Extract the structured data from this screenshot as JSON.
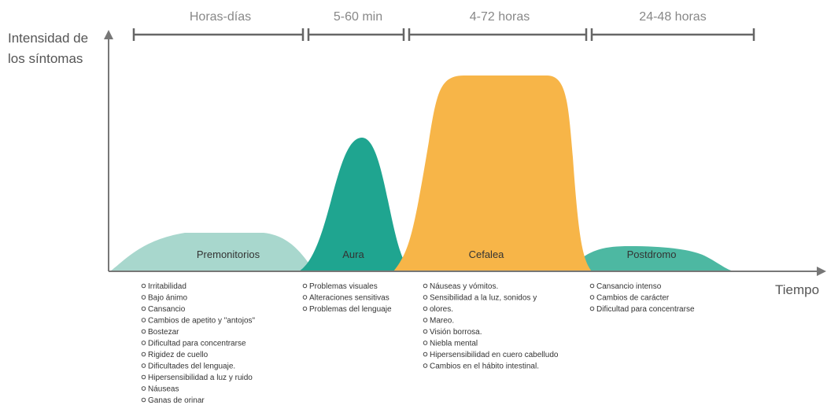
{
  "axis": {
    "y_label": [
      "Intensidad de",
      "los síntomas"
    ],
    "x_label": "Tiempo"
  },
  "phases": [
    {
      "name": "Premonitorios",
      "duration": "Horas-días",
      "symptoms": [
        "Irritabilidad",
        "Bajo ánimo",
        "Cansancio",
        "Cambios de apetito y \"antojos\"",
        "Bostezar",
        "Dificultad para concentrarse",
        "Rigidez de cuello",
        "Dificultades del lenguaje.",
        "Hipersensibilidad a luz y ruido",
        "Náuseas",
        "Ganas de orinar"
      ]
    },
    {
      "name": "Aura",
      "duration": "5-60 min",
      "symptoms": [
        "Problemas visuales",
        "Alteraciones sensitivas",
        "Problemas del lenguaje"
      ]
    },
    {
      "name": "Cefalea",
      "duration": "4-72 horas",
      "symptoms": [
        "Náuseas y vómitos.",
        "Sensibilidad a la luz, sonidos y",
        "olores.",
        "Mareo.",
        "Visión borrosa.",
        "Niebla mental",
        "Hipersensibilidad en cuero cabelludo",
        "Cambios en el hábito intestinal."
      ]
    },
    {
      "name": "Postdromo",
      "duration": "24-48 horas",
      "symptoms": [
        "Cansancio intenso",
        "Cambios de carácter",
        "Dificultad para concentrarse"
      ]
    }
  ]
}
